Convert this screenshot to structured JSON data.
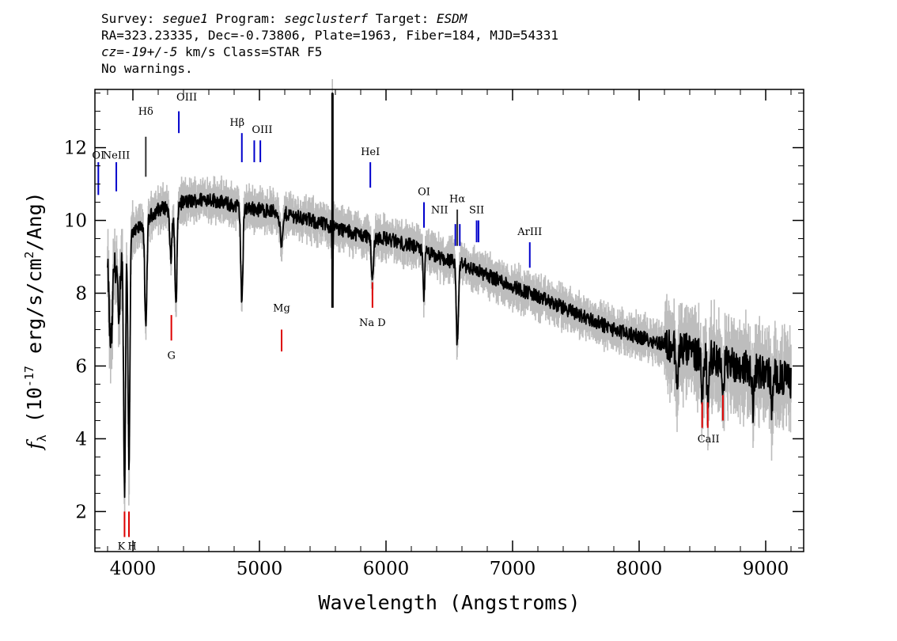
{
  "header": {
    "survey_label": "Survey: ",
    "survey": "segue1",
    "program_label": " Program: ",
    "program": "segclusterf",
    "target_label": " Target: ",
    "target": "ESDM",
    "line2": "RA=323.23335, Dec=-0.73806, Plate=1963, Fiber=184, MJD=54331",
    "cz_label": "cz=",
    "cz_value": "-19+/-5",
    "cz_rest": " km/s Class=STAR F5",
    "line4": "No warnings."
  },
  "chart_data": {
    "type": "line",
    "xlabel": "Wavelength (Angstroms)",
    "ylabel_main": "f",
    "ylabel_sub": "λ",
    "ylabel_rest": " (10",
    "ylabel_exp": "-17",
    "ylabel_units": " erg/s/cm",
    "ylabel_exp2": "2",
    "ylabel_end": "/Ang)",
    "xlim": [
      3700,
      9300
    ],
    "ylim": [
      0.9,
      13.6
    ],
    "x_ticks": [
      4000,
      5000,
      6000,
      7000,
      8000,
      9000
    ],
    "y_ticks": [
      2,
      4,
      6,
      8,
      10,
      12
    ],
    "grid": false,
    "colors": {
      "spectrum": "#000000",
      "error_band": "#bdbdbd",
      "emission": "#0000cc",
      "absorption": "#dd0000"
    },
    "continuum": [
      {
        "x": 3800,
        "y": 8.6
      },
      {
        "x": 3900,
        "y": 8.8
      },
      {
        "x": 4000,
        "y": 9.6
      },
      {
        "x": 4100,
        "y": 10.0
      },
      {
        "x": 4200,
        "y": 10.3
      },
      {
        "x": 4400,
        "y": 10.5
      },
      {
        "x": 4600,
        "y": 10.6
      },
      {
        "x": 4800,
        "y": 10.4
      },
      {
        "x": 5000,
        "y": 10.3
      },
      {
        "x": 5200,
        "y": 10.2
      },
      {
        "x": 5400,
        "y": 10.0
      },
      {
        "x": 5600,
        "y": 9.8
      },
      {
        "x": 5800,
        "y": 9.6
      },
      {
        "x": 6000,
        "y": 9.5
      },
      {
        "x": 6200,
        "y": 9.3
      },
      {
        "x": 6400,
        "y": 9.0
      },
      {
        "x": 6600,
        "y": 8.8
      },
      {
        "x": 6800,
        "y": 8.5
      },
      {
        "x": 7000,
        "y": 8.2
      },
      {
        "x": 7200,
        "y": 7.9
      },
      {
        "x": 7400,
        "y": 7.6
      },
      {
        "x": 7600,
        "y": 7.3
      },
      {
        "x": 7800,
        "y": 7.0
      },
      {
        "x": 8000,
        "y": 6.8
      },
      {
        "x": 8200,
        "y": 6.6
      },
      {
        "x": 8400,
        "y": 6.4
      },
      {
        "x": 8600,
        "y": 6.2
      },
      {
        "x": 8800,
        "y": 6.0
      },
      {
        "x": 9000,
        "y": 5.8
      },
      {
        "x": 9200,
        "y": 5.6
      }
    ],
    "absorption_features": [
      {
        "x": 3820,
        "depth": 2.0,
        "width": 10
      },
      {
        "x": 3835,
        "depth": 1.6,
        "width": 8
      },
      {
        "x": 3889,
        "depth": 1.8,
        "width": 10
      },
      {
        "x": 3934,
        "depth": 6.5,
        "width": 10
      },
      {
        "x": 3969,
        "depth": 6.0,
        "width": 10
      },
      {
        "x": 4102,
        "depth": 3.0,
        "width": 12
      },
      {
        "x": 4300,
        "depth": 1.4,
        "width": 14
      },
      {
        "x": 4340,
        "depth": 2.8,
        "width": 12
      },
      {
        "x": 4861,
        "depth": 2.6,
        "width": 12
      },
      {
        "x": 5175,
        "depth": 0.9,
        "width": 16
      },
      {
        "x": 5577,
        "depth": 2.4,
        "width": 4
      },
      {
        "x": 5893,
        "depth": 1.2,
        "width": 12
      },
      {
        "x": 6300,
        "depth": 1.3,
        "width": 8
      },
      {
        "x": 6563,
        "depth": 2.3,
        "width": 12
      },
      {
        "x": 8300,
        "depth": 1.3,
        "width": 10
      },
      {
        "x": 8498,
        "depth": 1.1,
        "width": 10
      },
      {
        "x": 8542,
        "depth": 1.2,
        "width": 10
      },
      {
        "x": 8662,
        "depth": 1.1,
        "width": 10
      },
      {
        "x": 8900,
        "depth": 1.0,
        "width": 10
      },
      {
        "x": 9050,
        "depth": 0.9,
        "width": 10
      }
    ],
    "spikes": [
      {
        "x": 5577,
        "top": 13.5,
        "bottom": 7.6
      }
    ],
    "line_markers": [
      {
        "label": "OI",
        "x": 3727,
        "kind": "emission",
        "y_top": 11.6,
        "y_bot": 10.7,
        "label_y": 11.7,
        "label_dx": 0
      },
      {
        "label": "NeIII",
        "x": 3869,
        "kind": "emission",
        "y_top": 11.6,
        "y_bot": 10.8,
        "label_y": 11.7,
        "label_dx": 0
      },
      {
        "label": "Hδ",
        "x": 4102,
        "kind": "absorption_dark",
        "y_top": 12.3,
        "y_bot": 11.2,
        "label_y": 12.9,
        "label_dx": 0
      },
      {
        "label": "OIII",
        "x": 4363,
        "kind": "emission",
        "y_top": 13.0,
        "y_bot": 12.4,
        "label_y": 13.3,
        "label_dx": 10
      },
      {
        "label": "Hβ",
        "x": 4861,
        "kind": "emission",
        "y_top": 12.4,
        "y_bot": 11.6,
        "label_y": 12.6,
        "label_dx": -6
      },
      {
        "label": "OIII",
        "x": 4959,
        "kind": "emission",
        "y_top": 12.2,
        "y_bot": 11.6,
        "label_y": 12.4,
        "label_dx": 10
      },
      {
        "label": "OIII",
        "x": 5007,
        "kind": "emission",
        "y_top": 12.2,
        "y_bot": 11.6,
        "label_y": -1,
        "label_dx": 0
      },
      {
        "label": "HeI",
        "x": 5876,
        "kind": "emission",
        "y_top": 11.6,
        "y_bot": 10.9,
        "label_y": 11.8,
        "label_dx": 0
      },
      {
        "label": "OI",
        "x": 6300,
        "kind": "emission",
        "y_top": 10.5,
        "y_bot": 9.8,
        "label_y": 10.7,
        "label_dx": 0
      },
      {
        "label": "NII",
        "x": 6548,
        "kind": "emission",
        "y_top": 9.9,
        "y_bot": 9.3,
        "label_y": 10.2,
        "label_dx": -20
      },
      {
        "label": "Hα",
        "x": 6563,
        "kind": "absorption_dark",
        "y_top": 10.3,
        "y_bot": 9.3,
        "label_y": 10.5,
        "label_dx": 0
      },
      {
        "label": "NII",
        "x": 6583,
        "kind": "emission",
        "y_top": 9.9,
        "y_bot": 9.3,
        "label_y": -1,
        "label_dx": 0
      },
      {
        "label": "SII",
        "x": 6716,
        "kind": "emission",
        "y_top": 10.0,
        "y_bot": 9.4,
        "label_y": 10.2,
        "label_dx": 0
      },
      {
        "label": "SII",
        "x": 6731,
        "kind": "emission",
        "y_top": 10.0,
        "y_bot": 9.4,
        "label_y": -1,
        "label_dx": 0
      },
      {
        "label": "ArIII",
        "x": 7136,
        "kind": "emission",
        "y_top": 9.4,
        "y_bot": 8.7,
        "label_y": 9.6,
        "label_dx": 0
      },
      {
        "label": "G",
        "x": 4304,
        "kind": "absorption",
        "y_top": 7.4,
        "y_bot": 6.7,
        "label_y": 6.2,
        "label_dx": 0
      },
      {
        "label": "Mg",
        "x": 5175,
        "kind": "absorption",
        "y_top": 7.0,
        "y_bot": 6.4,
        "label_y": 7.5,
        "label_dx": 0
      },
      {
        "label": "Na D",
        "x": 5893,
        "kind": "absorption",
        "y_top": 8.3,
        "y_bot": 7.6,
        "label_y": 7.1,
        "label_dx": 0
      },
      {
        "label": "K",
        "x": 3934,
        "kind": "absorption",
        "y_top": 2.0,
        "y_bot": 1.3,
        "label_y": 0.95,
        "label_dx": -4
      },
      {
        "label": "H",
        "x": 3969,
        "kind": "absorption",
        "y_top": 2.0,
        "y_bot": 1.3,
        "label_y": 0.95,
        "label_dx": 4
      },
      {
        "label": "CaII",
        "x": 8498,
        "kind": "absorption",
        "y_top": 5.0,
        "y_bot": 4.3,
        "label_y": 3.9,
        "label_dx": 8
      },
      {
        "label": "CaII_b",
        "x": 8542,
        "kind": "absorption",
        "y_top": 5.0,
        "y_bot": 4.3,
        "label_y": -1,
        "label_dx": 0
      },
      {
        "label": "CaII_c",
        "x": 8662,
        "kind": "absorption",
        "y_top": 5.2,
        "y_bot": 4.5,
        "label_y": -1,
        "label_dx": 0
      }
    ]
  }
}
